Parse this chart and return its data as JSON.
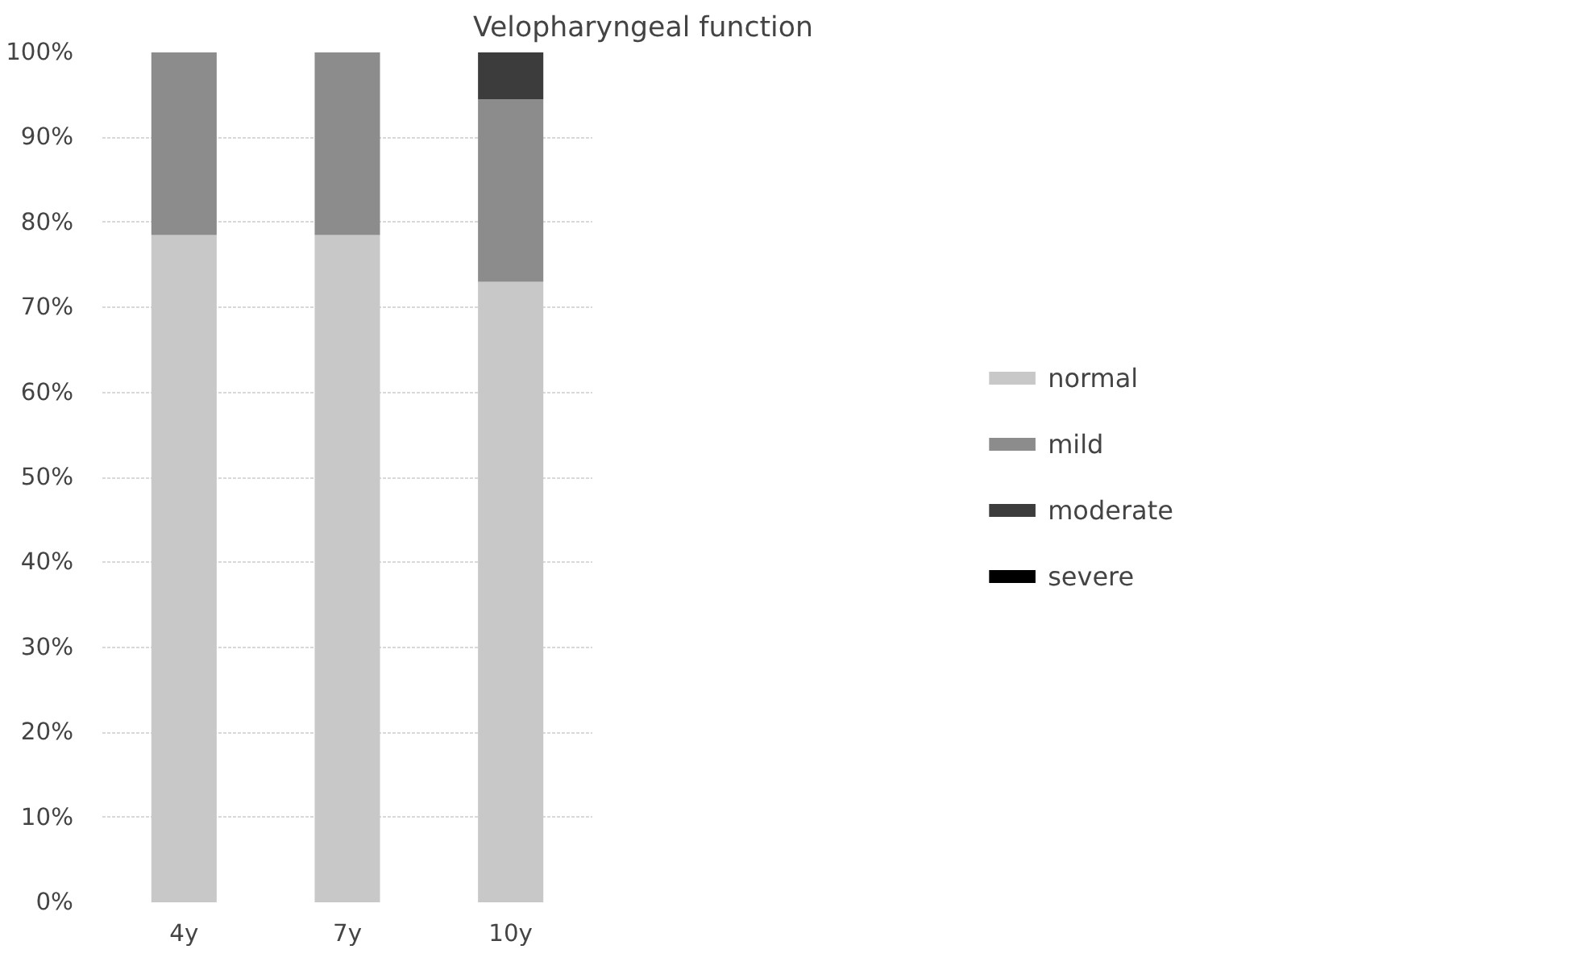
{
  "chart_data": {
    "type": "bar",
    "title": "Velopharyngeal function",
    "stacked": true,
    "categories": [
      "4y",
      "7y",
      "10y"
    ],
    "series": [
      {
        "name": "normal",
        "color": "#c8c8c8",
        "values": [
          78.5,
          78.5,
          73
        ]
      },
      {
        "name": "mild",
        "color": "#8c8c8c",
        "values": [
          21.5,
          21.5,
          21.5
        ]
      },
      {
        "name": "moderate",
        "color": "#3c3c3c",
        "values": [
          0,
          0,
          5.5
        ]
      },
      {
        "name": "severe",
        "color": "#000000",
        "values": [
          0,
          0,
          0
        ]
      }
    ],
    "ylim": [
      0,
      100
    ],
    "yticks": [
      {
        "value": 0,
        "label": "0%"
      },
      {
        "value": 10,
        "label": "10%"
      },
      {
        "value": 20,
        "label": "20%"
      },
      {
        "value": 30,
        "label": "30%"
      },
      {
        "value": 40,
        "label": "40%"
      },
      {
        "value": 50,
        "label": "50%"
      },
      {
        "value": 60,
        "label": "60%"
      },
      {
        "value": 70,
        "label": "70%"
      },
      {
        "value": 80,
        "label": "80%"
      },
      {
        "value": 90,
        "label": "90%"
      },
      {
        "value": 100,
        "label": "100%"
      }
    ],
    "grid": "y",
    "legend": "right"
  }
}
